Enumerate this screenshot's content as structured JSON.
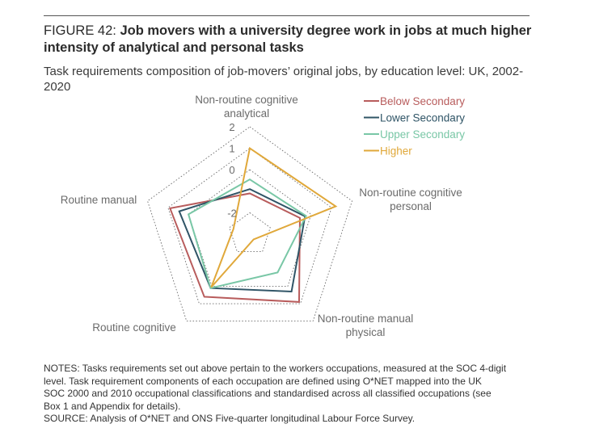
{
  "figure": {
    "label": "FIGURE 42: ",
    "title": "Job movers with a university degree work in jobs at much higher intensity of analytical and personal tasks",
    "subtitle": "Task requirements composition of job-movers’ original jobs, by education level: UK, 2002-2020"
  },
  "chart_data": {
    "type": "radar",
    "axes": [
      "Non-routine cognitive analytical",
      "Non-routine cognitive personal",
      "Non-routine manual physical",
      "Routine cognitive",
      "Routine manual"
    ],
    "axis_label_lines": [
      [
        "Non-routine cognitive",
        "analytical"
      ],
      [
        "Non-routine cognitive",
        "personal"
      ],
      [
        "Non-routine manual",
        "physical"
      ],
      [
        "Routine cognitive"
      ],
      [
        "Routine manual"
      ]
    ],
    "scale_ticks": [
      -2,
      0,
      1,
      2
    ],
    "scale_tick_labels": [
      "-2",
      "0",
      "1",
      "2"
    ],
    "rlim": [
      -3,
      2
    ],
    "grid": "dotted pentagons",
    "legend_position": "top-right",
    "series": [
      {
        "name": "Below Secondary",
        "color": "#b85c5c",
        "values": [
          -1.1,
          -0.55,
          0.9,
          0.6,
          0.9
        ]
      },
      {
        "name": "Lower Secondary",
        "color": "#2f5466",
        "values": [
          -0.9,
          -0.3,
          0.3,
          0.1,
          0.45
        ]
      },
      {
        "name": "Upper Secondary",
        "color": "#79c7a6",
        "values": [
          -0.45,
          -0.25,
          -0.8,
          0.1,
          0.0
        ]
      },
      {
        "name": "Higher",
        "color": "#e0a83a",
        "values": [
          1.0,
          1.2,
          -2.7,
          0.05,
          -2.2
        ]
      }
    ]
  },
  "notes": {
    "line1": "NOTES: Tasks requirements set out above pertain to the workers occupations, measured at the SOC 4-digit",
    "line2": "level. Task requirement components of each occupation are defined using O*NET mapped into the UK",
    "line3": "SOC 2000 and 2010 occupational classifications and standardised across all classified occupations (see",
    "line4": "Box 1 and Appendix for details).",
    "source": "SOURCE: Analysis of O*NET and ONS Five-quarter longitudinal Labour Force Survey."
  }
}
